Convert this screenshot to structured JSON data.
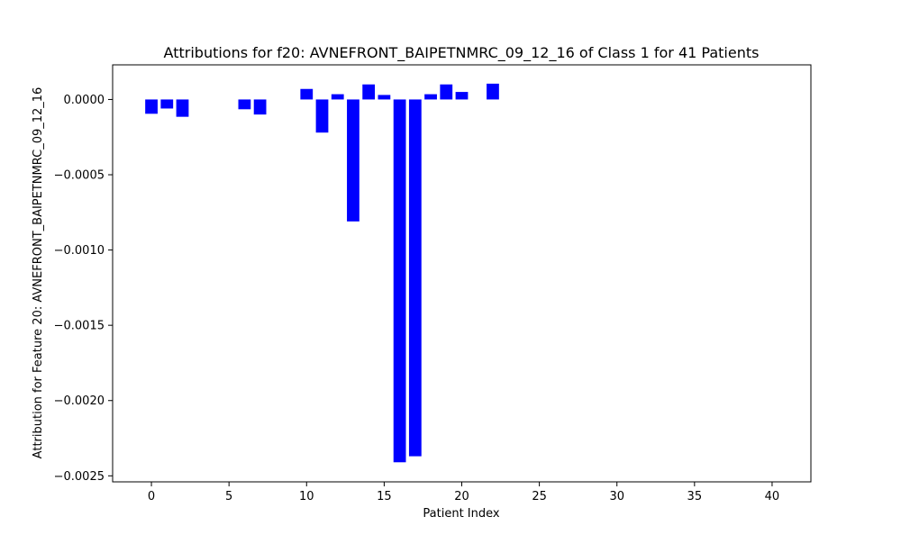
{
  "chart_data": {
    "type": "bar",
    "title": "Attributions for f20: AVNEFRONT_BAIPETNMRC_09_12_16 of Class 1 for 41 Patients",
    "xlabel": "Patient Index",
    "ylabel": "Attribution for Feature 20: AVNEFRONT_BAIPETNMRC_09_12_16",
    "x": [
      0,
      1,
      2,
      3,
      4,
      5,
      6,
      7,
      8,
      9,
      10,
      11,
      12,
      13,
      14,
      15,
      16,
      17,
      18,
      19,
      20,
      21,
      22,
      23,
      24,
      25,
      26,
      27,
      28,
      29,
      30,
      31,
      32,
      33,
      34,
      35,
      36,
      37,
      38,
      39,
      40
    ],
    "values": [
      -9.5e-05,
      -6e-05,
      -0.000115,
      0,
      0,
      0,
      -6.5e-05,
      -0.0001,
      0,
      0,
      7e-05,
      -0.00022,
      3.5e-05,
      -0.00081,
      0.0001,
      3e-05,
      -0.00241,
      -0.00237,
      3.5e-05,
      0.0001,
      5e-05,
      0,
      0.000105,
      0,
      0,
      0,
      0,
      0,
      0,
      0,
      0,
      0,
      0,
      0,
      0,
      0,
      0,
      0,
      0,
      0,
      0
    ],
    "xlim": [
      -2.5,
      42.5
    ],
    "ylim": [
      -0.00254,
      0.00023
    ],
    "x_ticks": [
      0,
      5,
      10,
      15,
      20,
      25,
      30,
      35,
      40
    ],
    "x_tick_labels": [
      "0",
      "5",
      "10",
      "15",
      "20",
      "25",
      "30",
      "35",
      "40"
    ],
    "y_ticks": [
      0,
      -0.0005,
      -0.001,
      -0.0015,
      -0.002,
      -0.0025
    ],
    "y_tick_labels": [
      "0.0000",
      "−0.0005",
      "−0.0010",
      "−0.0015",
      "−0.0020",
      "−0.0025"
    ],
    "bar_color": "#0000ff",
    "grid": false
  }
}
